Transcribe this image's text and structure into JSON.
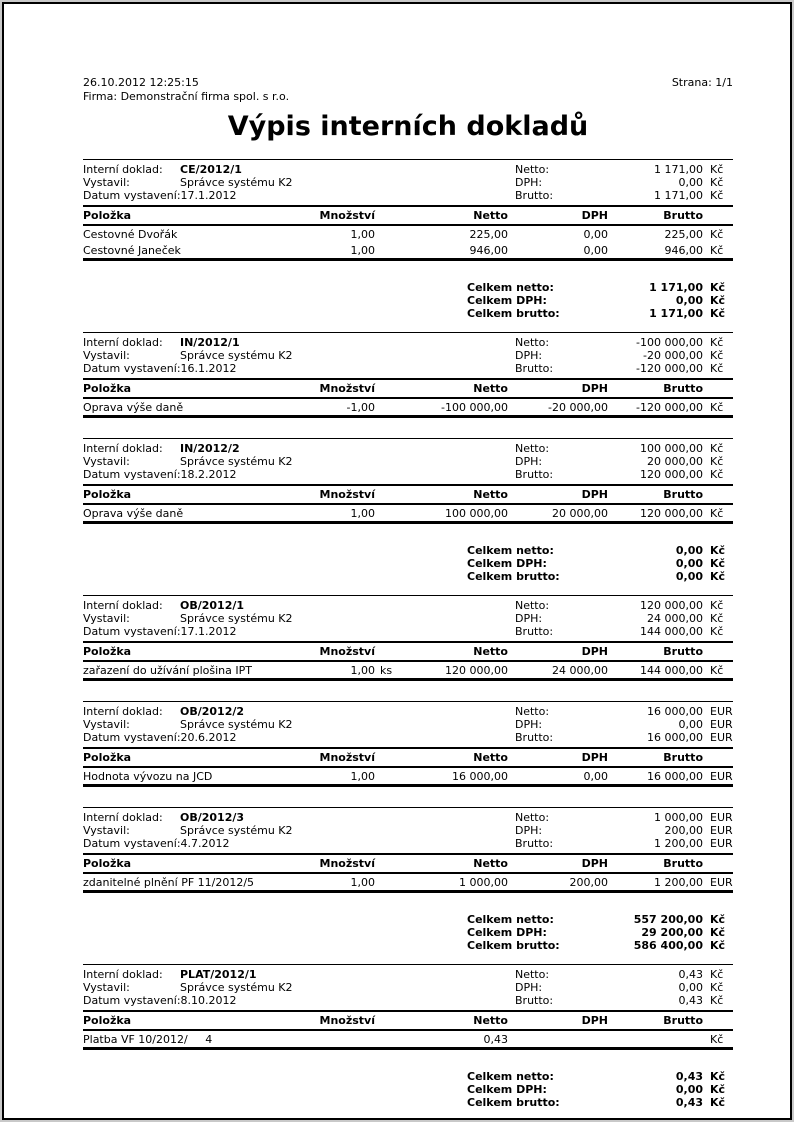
{
  "page": {
    "printed_at": "26.10.2012  12:25:15",
    "company_line": "Firma: Demonstrační firma spol. s r.o.",
    "page_label": "Strana: 1/1",
    "title": "Výpis interních dokladů"
  },
  "labels": {
    "internal_doc": "Interní doklad:",
    "issued_by": "Vystavil:",
    "issue_date": "Datum vystavení:",
    "netto": "Netto:",
    "dph": "DPH:",
    "brutto": "Brutto:",
    "sum_netto": "Celkem netto:",
    "sum_dph": "Celkem DPH:",
    "sum_brutto": "Celkem brutto:"
  },
  "table_headers": {
    "polozka": "Položka",
    "mnozstvi": "Množství",
    "netto": "Netto",
    "dph": "DPH",
    "brutto": "Brutto"
  },
  "sections": [
    {
      "type": "doc",
      "id": "CE/2012/1",
      "issued_by": "Správce systému K2",
      "issue_date": "17.1.2012",
      "summary": {
        "netto": "1 171,00",
        "dph": "0,00",
        "brutto": "1 171,00",
        "currency": "Kč"
      },
      "items": [
        {
          "name": "Cestovné Dvořák",
          "qty": "1,00",
          "unit": "",
          "netto": "225,00",
          "dph": "0,00",
          "brutto": "225,00",
          "currency": "Kč"
        },
        {
          "name": "Cestovné Janeček",
          "qty": "1,00",
          "unit": "",
          "netto": "946,00",
          "dph": "0,00",
          "brutto": "946,00",
          "currency": "Kč"
        }
      ]
    },
    {
      "type": "totals",
      "netto": "1 171,00",
      "dph": "0,00",
      "brutto": "1 171,00",
      "currency": "Kč"
    },
    {
      "type": "doc",
      "id": "IN/2012/1",
      "issued_by": "Správce systému K2",
      "issue_date": "16.1.2012",
      "summary": {
        "netto": "-100 000,00",
        "dph": "-20 000,00",
        "brutto": "-120 000,00",
        "currency": "Kč"
      },
      "items": [
        {
          "name": "Oprava výše daně",
          "qty": "-1,00",
          "unit": "",
          "netto": "-100 000,00",
          "dph": "-20 000,00",
          "brutto": "-120 000,00",
          "currency": "Kč"
        }
      ]
    },
    {
      "type": "doc",
      "id": "IN/2012/2",
      "issued_by": "Správce systému K2",
      "issue_date": "18.2.2012",
      "summary": {
        "netto": "100 000,00",
        "dph": "20 000,00",
        "brutto": "120 000,00",
        "currency": "Kč"
      },
      "items": [
        {
          "name": "Oprava výše daně",
          "qty": "1,00",
          "unit": "",
          "netto": "100 000,00",
          "dph": "20 000,00",
          "brutto": "120 000,00",
          "currency": "Kč"
        }
      ]
    },
    {
      "type": "totals",
      "netto": "0,00",
      "dph": "0,00",
      "brutto": "0,00",
      "currency": "Kč"
    },
    {
      "type": "doc",
      "id": "OB/2012/1",
      "issued_by": "Správce systému K2",
      "issue_date": "17.1.2012",
      "summary": {
        "netto": "120 000,00",
        "dph": "24 000,00",
        "brutto": "144 000,00",
        "currency": "Kč"
      },
      "items": [
        {
          "name": "zařazení do užívání plošina IPT",
          "qty": "1,00",
          "unit": "ks",
          "netto": "120 000,00",
          "dph": "24 000,00",
          "brutto": "144 000,00",
          "currency": "Kč"
        }
      ]
    },
    {
      "type": "doc",
      "id": "OB/2012/2",
      "issued_by": "Správce systému K2",
      "issue_date": "20.6.2012",
      "summary": {
        "netto": "16 000,00",
        "dph": "0,00",
        "brutto": "16 000,00",
        "currency": "EUR"
      },
      "items": [
        {
          "name": "Hodnota vývozu na JCD",
          "qty": "1,00",
          "unit": "",
          "netto": "16 000,00",
          "dph": "0,00",
          "brutto": "16 000,00",
          "currency": "EUR"
        }
      ]
    },
    {
      "type": "doc",
      "id": "OB/2012/3",
      "issued_by": "Správce systému K2",
      "issue_date": "4.7.2012",
      "summary": {
        "netto": "1 000,00",
        "dph": "200,00",
        "brutto": "1 200,00",
        "currency": "EUR"
      },
      "items": [
        {
          "name": "zdanitelné plnění PF 11/2012/5",
          "qty": "1,00",
          "unit": "",
          "netto": "1 000,00",
          "dph": "200,00",
          "brutto": "1 200,00",
          "currency": "EUR"
        }
      ]
    },
    {
      "type": "totals",
      "netto": "557 200,00",
      "dph": "29 200,00",
      "brutto": "586 400,00",
      "currency": "Kč"
    },
    {
      "type": "doc",
      "id": "PLAT/2012/1",
      "issued_by": "Správce systému K2",
      "issue_date": "8.10.2012",
      "summary": {
        "netto": "0,43",
        "dph": "0,00",
        "brutto": "0,43",
        "currency": "Kč"
      },
      "items": [
        {
          "name": "Platba VF 10/2012/     4",
          "qty": "",
          "unit": "",
          "netto": "0,43",
          "dph": "",
          "brutto": "",
          "currency": "Kč"
        }
      ]
    },
    {
      "type": "totals",
      "netto": "0,43",
      "dph": "0,00",
      "brutto": "0,43",
      "currency": "Kč"
    }
  ]
}
